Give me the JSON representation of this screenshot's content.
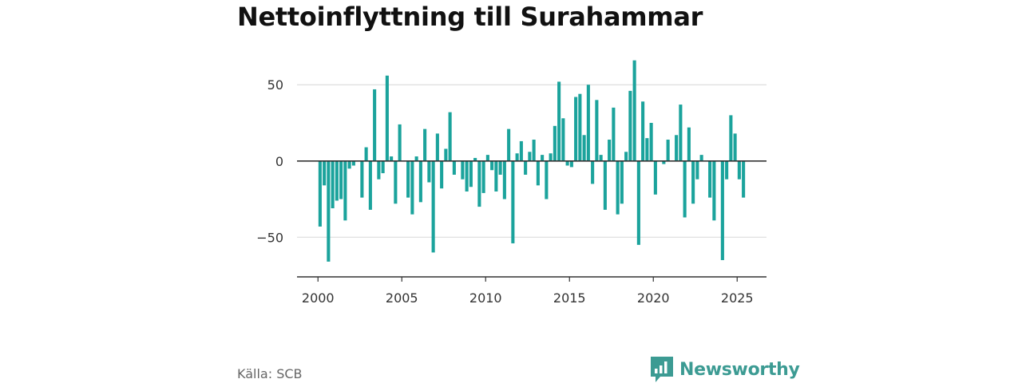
{
  "colors": {
    "bar": "#1ba39c",
    "brand": "#3c9b93",
    "grid": "#dddddd",
    "axis": "#333333"
  },
  "brand": {
    "name": "Newsworthy",
    "logo_icon": "newsworthy-chart-logo-icon"
  },
  "source": "Källa: SCB",
  "chart_data": {
    "type": "bar",
    "title": "Nettoinflyttning till Surahammar",
    "xlabel": "",
    "ylabel": "",
    "grid": true,
    "legend": "none",
    "ylim": [
      -76,
      70
    ],
    "yticks": [
      -50,
      0,
      50
    ],
    "ytick_labels": [
      "−50",
      "0",
      "50"
    ],
    "xlim": [
      1998.75,
      2026.75
    ],
    "xticks": [
      2000,
      2005,
      2010,
      2015,
      2020,
      2025
    ],
    "xtick_labels": [
      "2000",
      "2005",
      "2010",
      "2015",
      "2020",
      "2025"
    ],
    "x": [
      2000.125,
      2000.375,
      2000.625,
      2000.875,
      2001.125,
      2001.375,
      2001.625,
      2001.875,
      2002.125,
      2002.375,
      2002.625,
      2002.875,
      2003.125,
      2003.375,
      2003.625,
      2003.875,
      2004.125,
      2004.375,
      2004.625,
      2004.875,
      2005.125,
      2005.375,
      2005.625,
      2005.875,
      2006.125,
      2006.375,
      2006.625,
      2006.875,
      2007.125,
      2007.375,
      2007.625,
      2007.875,
      2008.125,
      2008.375,
      2008.625,
      2008.875,
      2009.125,
      2009.375,
      2009.625,
      2009.875,
      2010.125,
      2010.375,
      2010.625,
      2010.875,
      2011.125,
      2011.375,
      2011.625,
      2011.875,
      2012.125,
      2012.375,
      2012.625,
      2012.875,
      2013.125,
      2013.375,
      2013.625,
      2013.875,
      2014.125,
      2014.375,
      2014.625,
      2014.875,
      2015.125,
      2015.375,
      2015.625,
      2015.875,
      2016.125,
      2016.375,
      2016.625,
      2016.875,
      2017.125,
      2017.375,
      2017.625,
      2017.875,
      2018.125,
      2018.375,
      2018.625,
      2018.875,
      2019.125,
      2019.375,
      2019.625,
      2019.875,
      2020.125,
      2020.375,
      2020.625,
      2020.875,
      2021.125,
      2021.375,
      2021.625,
      2021.875,
      2022.125,
      2022.375,
      2022.625,
      2022.875,
      2023.125,
      2023.375,
      2023.625,
      2023.875,
      2024.125,
      2024.375,
      2024.625,
      2024.875,
      2025.125,
      2025.375
    ],
    "values": [
      -43,
      -16,
      -66,
      -31,
      -26,
      -25,
      -39,
      -5,
      -3,
      0,
      -24,
      9,
      -32,
      47,
      -12,
      -8,
      56,
      3,
      -28,
      24,
      0,
      -24,
      -35,
      3,
      -27,
      21,
      -14,
      -60,
      18,
      -18,
      8,
      32,
      -9,
      0,
      -12,
      -20,
      -17,
      2,
      -30,
      -21,
      4,
      -6,
      -20,
      -9,
      -25,
      21,
      -54,
      5,
      13,
      -9,
      6,
      14,
      -16,
      4,
      -25,
      5,
      23,
      52,
      28,
      -3,
      -4,
      42,
      44,
      17,
      50,
      -15,
      40,
      4,
      -32,
      14,
      35,
      -35,
      -28,
      6,
      46,
      66,
      -55,
      39,
      15,
      25,
      -22,
      0,
      -2,
      14,
      0,
      17,
      37,
      -37,
      22,
      -28,
      -12,
      4,
      0,
      -24,
      -39,
      0,
      -65,
      -12,
      30,
      18,
      -12,
      -24
    ]
  }
}
